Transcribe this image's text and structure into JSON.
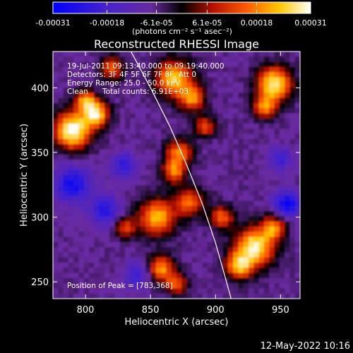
{
  "chart_data": {
    "type": "heatmap",
    "title": "Reconstructed RHESSI Image",
    "xlabel": "Heliocentric X (arcsec)",
    "ylabel": "Heliocentric Y (arcsec)",
    "xlim": [
      775,
      965
    ],
    "ylim": [
      237,
      428
    ],
    "x_ticks": [
      800,
      850,
      900,
      950
    ],
    "y_ticks": [
      250,
      300,
      350,
      400
    ],
    "colorbar": {
      "tick_labels": [
        "-0.00031",
        "-0.00018",
        "-6.1e-05",
        "6.1e-05",
        "0.00018",
        "0.00031"
      ],
      "tick_values": [
        -0.00031,
        -0.00018,
        -6.1e-05,
        6.1e-05,
        0.00018,
        0.00031
      ],
      "range": [
        -0.00031,
        0.00031
      ],
      "unit_label": "(photons cm⁻² s⁻¹ asec⁻²)",
      "colors": [
        "#0000ff",
        "#5a2ab8",
        "#6a2aa0",
        "#000000",
        "#c81400",
        "#ff6a00",
        "#ffd000",
        "#ffffff"
      ]
    },
    "annotations": [
      "19-Jul-2011 09:13:40.000 to 09:19:40.000",
      "Detectors: 3F 4F 5F 6F 7F 8F, Att 0",
      "Energy Range: 25.0 - 50.0 keV",
      "Clean",
      "Total counts: 6.91E+03",
      "Position of Peak = [783,368]"
    ],
    "peak": {
      "x": 783,
      "y": 368
    },
    "limb_curve": [
      {
        "x": 835,
        "y": 428
      },
      {
        "x": 850,
        "y": 400
      },
      {
        "x": 865,
        "y": 370
      },
      {
        "x": 878,
        "y": 340
      },
      {
        "x": 890,
        "y": 310
      },
      {
        "x": 900,
        "y": 280
      },
      {
        "x": 907,
        "y": 255
      },
      {
        "x": 912,
        "y": 237
      }
    ],
    "hot_spots": [
      {
        "x": 790,
        "y": 367,
        "r": 14,
        "v": 1.0
      },
      {
        "x": 808,
        "y": 380,
        "r": 10,
        "v": 0.8
      },
      {
        "x": 800,
        "y": 390,
        "r": 8,
        "v": 0.55
      },
      {
        "x": 868,
        "y": 407,
        "r": 14,
        "v": 0.75
      },
      {
        "x": 882,
        "y": 392,
        "r": 10,
        "v": 0.55
      },
      {
        "x": 945,
        "y": 403,
        "r": 13,
        "v": 0.9
      },
      {
        "x": 938,
        "y": 385,
        "r": 9,
        "v": 0.5
      },
      {
        "x": 872,
        "y": 350,
        "r": 10,
        "v": 0.55
      },
      {
        "x": 868,
        "y": 335,
        "r": 9,
        "v": 0.5
      },
      {
        "x": 880,
        "y": 312,
        "r": 11,
        "v": 0.5
      },
      {
        "x": 855,
        "y": 300,
        "r": 14,
        "v": 0.7
      },
      {
        "x": 830,
        "y": 292,
        "r": 8,
        "v": 0.4
      },
      {
        "x": 858,
        "y": 260,
        "r": 10,
        "v": 0.6
      },
      {
        "x": 870,
        "y": 248,
        "r": 8,
        "v": 0.45
      },
      {
        "x": 930,
        "y": 277,
        "r": 15,
        "v": 0.9
      },
      {
        "x": 918,
        "y": 262,
        "r": 10,
        "v": 0.65
      },
      {
        "x": 945,
        "y": 292,
        "r": 9,
        "v": 0.55
      },
      {
        "x": 905,
        "y": 300,
        "r": 9,
        "v": 0.45
      },
      {
        "x": 892,
        "y": 370,
        "r": 8,
        "v": 0.4
      },
      {
        "x": 820,
        "y": 415,
        "r": 9,
        "v": 0.45
      }
    ],
    "cold_spots": [
      {
        "x": 790,
        "y": 325,
        "r": 14,
        "v": -0.6
      },
      {
        "x": 815,
        "y": 305,
        "r": 12,
        "v": -0.5
      },
      {
        "x": 955,
        "y": 310,
        "r": 10,
        "v": -0.7
      },
      {
        "x": 950,
        "y": 345,
        "r": 9,
        "v": -0.4
      },
      {
        "x": 830,
        "y": 340,
        "r": 10,
        "v": -0.45
      },
      {
        "x": 840,
        "y": 255,
        "r": 10,
        "v": -0.4
      }
    ]
  },
  "footer": {
    "date": "12-May-2022 10:16"
  }
}
